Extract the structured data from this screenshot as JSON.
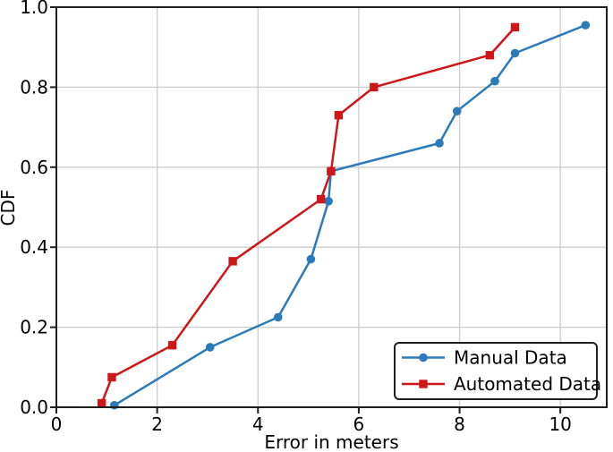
{
  "figure": {
    "background": "#ffffff"
  },
  "chart_data": {
    "type": "line",
    "title": "",
    "xlabel": "Error in meters",
    "ylabel": "CDF",
    "xlim": [
      0,
      10.92
    ],
    "ylim": [
      0,
      1.0
    ],
    "x_ticks": {
      "values": [
        0,
        2,
        4,
        6,
        8,
        10
      ],
      "labels": [
        "0",
        "2",
        "4",
        "6",
        "8",
        "10"
      ]
    },
    "y_ticks": {
      "values": [
        0,
        0.2,
        0.4,
        0.6,
        0.8,
        1.0
      ],
      "labels": [
        "0.0",
        "0.2",
        "0.4",
        "0.6",
        "0.8",
        "1.0"
      ]
    },
    "grid": true,
    "grid_color": "#cccccc",
    "axis_color": "#1f1f1f",
    "text_color": "#000000",
    "legend": {
      "position": "lower-right",
      "border_color": "#1f1f1f",
      "background": "#ffffff"
    },
    "series": [
      {
        "name": "Manual Data",
        "color": "#2b7bba",
        "marker": "circle",
        "points": [
          [
            1.15,
            0.005
          ],
          [
            3.05,
            0.15
          ],
          [
            4.4,
            0.225
          ],
          [
            5.05,
            0.37
          ],
          [
            5.4,
            0.515
          ],
          [
            5.45,
            0.59
          ],
          [
            7.6,
            0.66
          ],
          [
            7.95,
            0.74
          ],
          [
            8.7,
            0.815
          ],
          [
            9.1,
            0.885
          ],
          [
            10.5,
            0.955
          ]
        ]
      },
      {
        "name": "Automated Data",
        "color": "#cd1719",
        "marker": "square",
        "points": [
          [
            0.9,
            0.01
          ],
          [
            1.1,
            0.075
          ],
          [
            2.3,
            0.155
          ],
          [
            3.5,
            0.365
          ],
          [
            5.25,
            0.52
          ],
          [
            5.45,
            0.59
          ],
          [
            5.6,
            0.73
          ],
          [
            6.3,
            0.8
          ],
          [
            8.6,
            0.88
          ],
          [
            9.1,
            0.95
          ]
        ]
      }
    ]
  }
}
